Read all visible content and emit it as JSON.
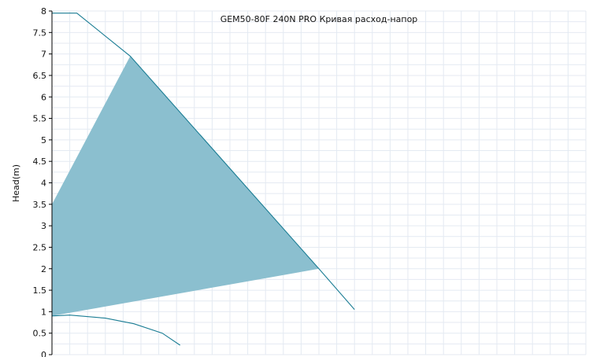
{
  "chart_data": {
    "type": "area",
    "title": "GEM50-80F 240N PRO Кривая расход-напор",
    "xlabel": "",
    "ylabel": "Head(m)",
    "xlim": [
      0,
      15
    ],
    "ylim": [
      0,
      8
    ],
    "x_major_step": 1,
    "x_minor_step": 0.5,
    "y_major_step": 0.5,
    "y_minor_step": 0.25,
    "grid": true,
    "yticks": [
      "0",
      "0.5",
      "1",
      "1.5",
      "2",
      "2.5",
      "3",
      "3.5",
      "4",
      "4.5",
      "5",
      "5.5",
      "6",
      "6.5",
      "7",
      "7.5",
      "8"
    ],
    "series": [
      {
        "kind": "area",
        "points": [
          [
            0,
            3.5
          ],
          [
            2.2,
            6.95
          ],
          [
            7.5,
            2.0
          ],
          [
            0,
            0.9
          ]
        ]
      },
      {
        "kind": "line",
        "points": [
          [
            0,
            7.95
          ],
          [
            0.7,
            7.95
          ],
          [
            2.2,
            6.95
          ],
          [
            7.5,
            2.0
          ],
          [
            8.5,
            1.05
          ]
        ]
      },
      {
        "kind": "line",
        "points": [
          [
            0,
            0.9
          ],
          [
            0.5,
            0.92
          ],
          [
            1.5,
            0.85
          ],
          [
            2.3,
            0.72
          ],
          [
            3.1,
            0.5
          ],
          [
            3.6,
            0.22
          ]
        ]
      }
    ],
    "colors": {
      "fill": "#8bbfcf",
      "line": "#1b7d94",
      "grid": "#e4eaf2",
      "axis": "#000000"
    }
  }
}
